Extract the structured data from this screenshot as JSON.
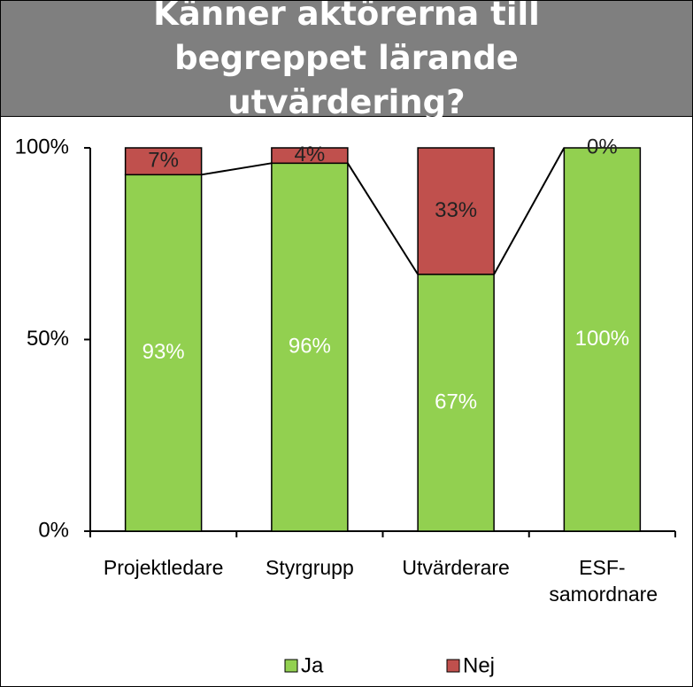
{
  "chart_data": {
    "type": "stacked-bar",
    "title": "Känner aktörerna till begreppet lärande utvärdering?",
    "categories": [
      "Projektledare",
      "Styrgrupp",
      "Utvärderare",
      "ESF-samordnare"
    ],
    "series": [
      {
        "name": "Ja",
        "color": "#92d050",
        "values": [
          93,
          96,
          67,
          100
        ],
        "value_labels": [
          "93%",
          "96%",
          "67%",
          "100%"
        ]
      },
      {
        "name": "Nej",
        "color": "#c0504d",
        "values": [
          7,
          4,
          33,
          0
        ],
        "value_labels": [
          "7%",
          "4%",
          "33%",
          "0%"
        ]
      }
    ],
    "ylim": [
      0,
      100
    ],
    "yticks": [
      {
        "value": 0,
        "label": "0%"
      },
      {
        "value": 50,
        "label": "50%"
      },
      {
        "value": 100,
        "label": "100%"
      }
    ],
    "legend": "bottom"
  }
}
